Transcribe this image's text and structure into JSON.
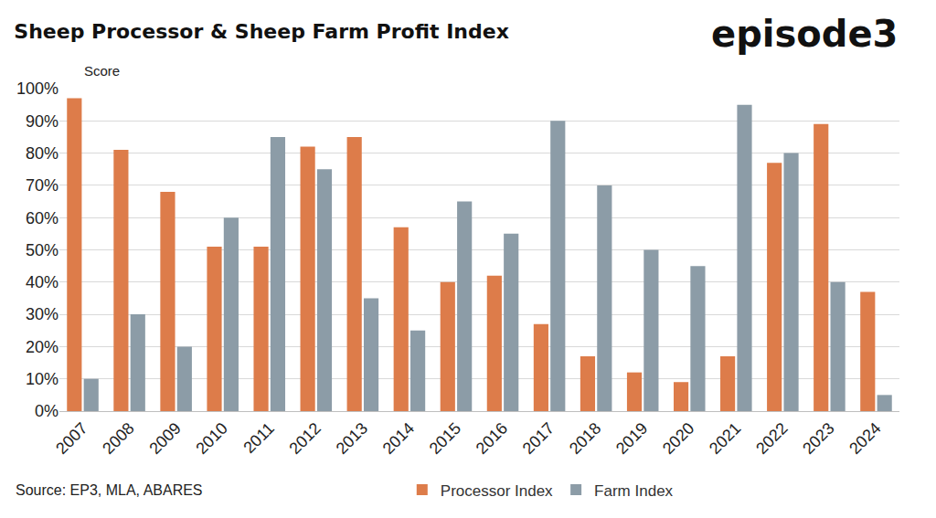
{
  "chart_data": {
    "type": "bar",
    "title": "Sheep Processor & Sheep Farm Profit Index",
    "ylabel": "Score",
    "annotations": [
      "episode3",
      "Source: EP3, MLA, ABARES"
    ],
    "categories": [
      "2007",
      "2008",
      "2009",
      "2010",
      "2011",
      "2012",
      "2013",
      "2014",
      "2015",
      "2016",
      "2017",
      "2018",
      "2019",
      "2020",
      "2021",
      "2022",
      "2023",
      "2024"
    ],
    "series": [
      {
        "name": "Processor Index",
        "color": "#dd7c4a",
        "values": [
          97,
          81,
          68,
          51,
          51,
          82,
          85,
          57,
          40,
          42,
          27,
          17,
          12,
          9,
          17,
          77,
          89,
          37
        ]
      },
      {
        "name": "Farm Index",
        "color": "#8c9ca7",
        "values": [
          10,
          30,
          20,
          60,
          85,
          75,
          35,
          25,
          65,
          55,
          90,
          70,
          50,
          45,
          95,
          80,
          40,
          5
        ]
      }
    ],
    "ylim": [
      0,
      100
    ],
    "yticks": [
      {
        "value": 0,
        "label": "0%"
      },
      {
        "value": 10,
        "label": "10%"
      },
      {
        "value": 20,
        "label": "20%"
      },
      {
        "value": 30,
        "label": "30%"
      },
      {
        "value": 40,
        "label": "40%"
      },
      {
        "value": 50,
        "label": "50%"
      },
      {
        "value": 60,
        "label": "60%"
      },
      {
        "value": 70,
        "label": "70%"
      },
      {
        "value": 80,
        "label": "80%"
      },
      {
        "value": 90,
        "label": "90%"
      },
      {
        "value": 100,
        "label": "100%"
      }
    ],
    "grid": true,
    "legend": "bottom"
  }
}
